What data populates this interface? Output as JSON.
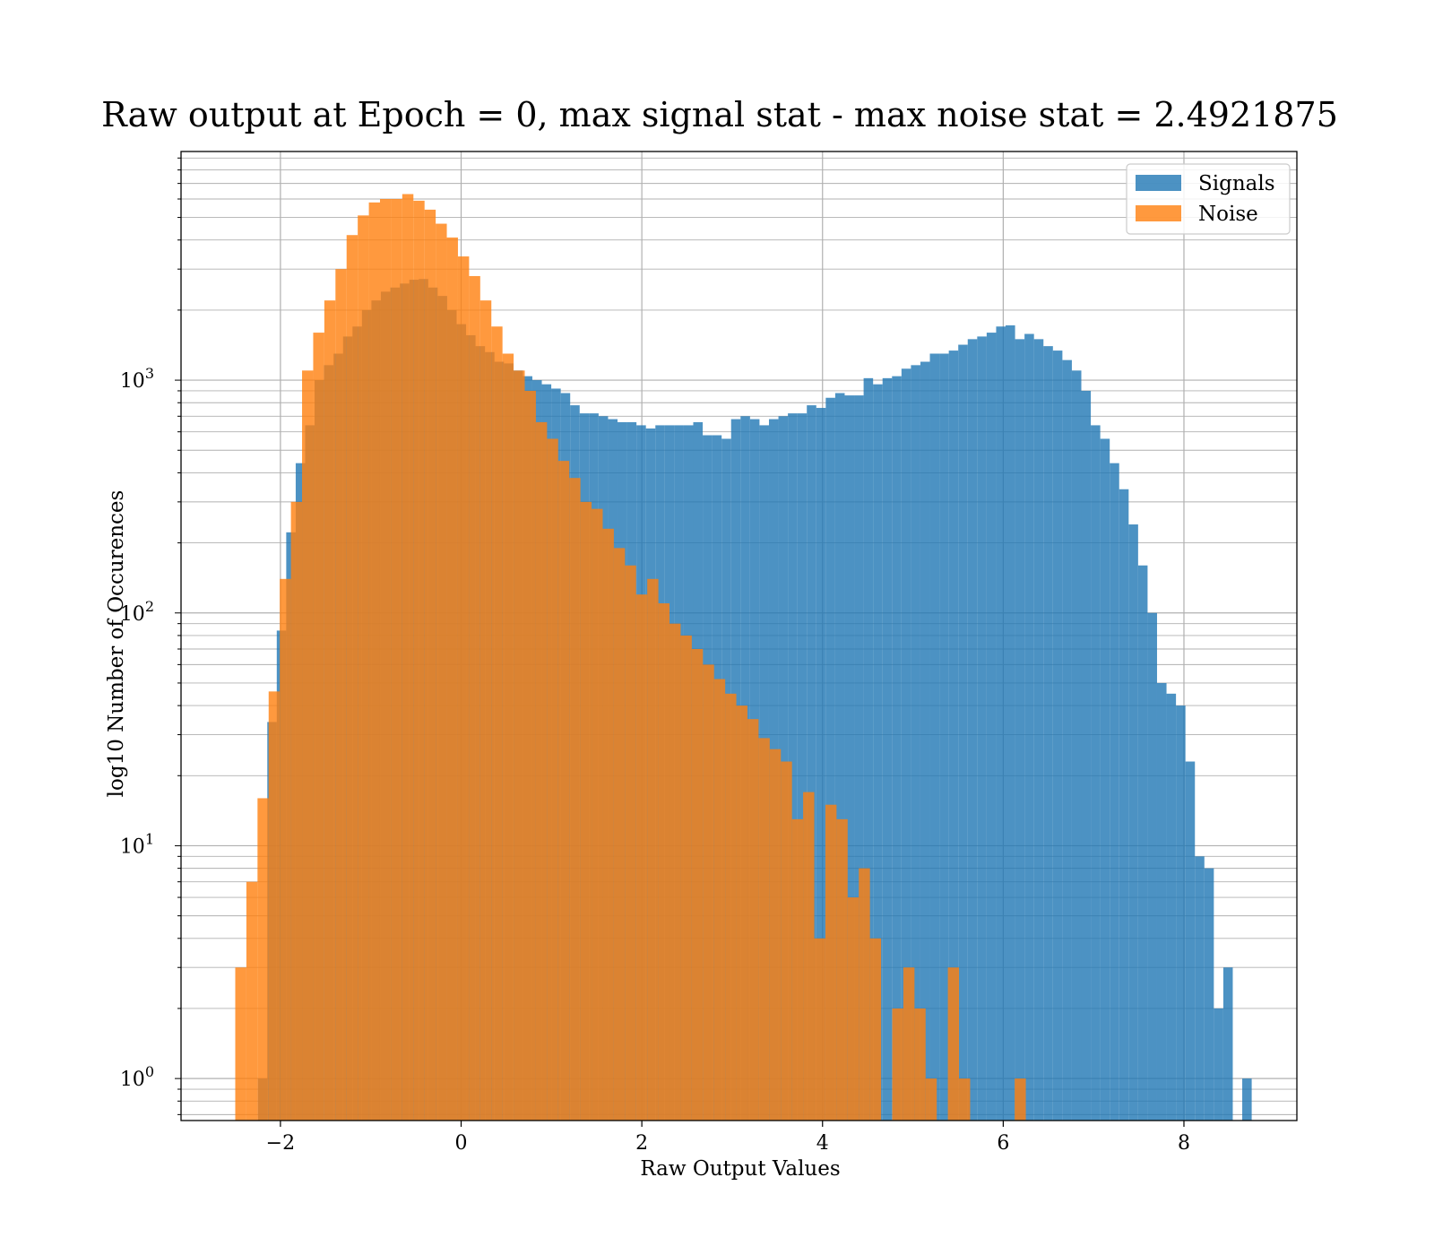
{
  "chart_data": {
    "type": "histogram",
    "title": "Raw output at Epoch = 0, max signal stat - max noise stat = 2.4921875",
    "xlabel": "Raw Output Values",
    "ylabel": "log10 Number of Occurences",
    "xlim": [
      -3.1,
      9.25
    ],
    "ylim": [
      0.66,
      9600
    ],
    "y_scale": "log",
    "x_ticks": [
      -2,
      0,
      2,
      4,
      6,
      8
    ],
    "x_tick_labels": [
      "−2",
      "0",
      "2",
      "4",
      "6",
      "8"
    ],
    "y_ticks": [
      {
        "value": 1,
        "base": "10",
        "exp": "0"
      },
      {
        "value": 10,
        "base": "10",
        "exp": "1"
      },
      {
        "value": 100,
        "base": "10",
        "exp": "2"
      },
      {
        "value": 1000,
        "base": "10",
        "exp": "3"
      }
    ],
    "grid": true,
    "legend_position": "top-right",
    "series": [
      {
        "name": "Signals",
        "color": "#1f77b4",
        "alpha": 0.8,
        "bin_edges": [
          -2.25,
          8.75
        ],
        "counts": [
          1,
          34,
          84,
          222,
          440,
          640,
          1000,
          1160,
          1300,
          1540,
          1700,
          2000,
          2200,
          2400,
          2500,
          2600,
          2700,
          2720,
          2500,
          2300,
          2000,
          1740,
          1560,
          1400,
          1320,
          1200,
          1180,
          1100,
          1040,
          1000,
          960,
          920,
          880,
          780,
          720,
          720,
          700,
          680,
          660,
          660,
          640,
          620,
          640,
          640,
          640,
          640,
          660,
          580,
          580,
          560,
          680,
          700,
          680,
          640,
          680,
          700,
          720,
          720,
          780,
          760,
          840,
          880,
          860,
          860,
          1020,
          960,
          1020,
          1040,
          1120,
          1160,
          1200,
          1300,
          1300,
          1340,
          1420,
          1500,
          1540,
          1600,
          1700,
          1720,
          1500,
          1580,
          1500,
          1400,
          1340,
          1220,
          1100,
          900,
          640,
          560,
          440,
          340,
          240,
          160,
          100,
          50,
          45,
          40,
          23,
          9,
          8,
          2,
          3,
          0,
          1
        ]
      },
      {
        "name": "Noise",
        "color": "#ff7f0e",
        "alpha": 0.8,
        "bin_edges": [
          -2.5,
          6.25
        ],
        "counts": [
          3,
          7,
          16,
          46,
          140,
          300,
          1100,
          1600,
          2200,
          3000,
          4200,
          5100,
          5800,
          6000,
          6000,
          6300,
          5900,
          5400,
          4700,
          4100,
          3400,
          2800,
          2200,
          1700,
          1300,
          1100,
          900,
          660,
          560,
          450,
          380,
          300,
          280,
          230,
          190,
          160,
          120,
          140,
          110,
          90,
          80,
          70,
          60,
          52,
          45,
          40,
          35,
          29,
          26,
          23,
          13,
          17,
          4,
          15,
          13,
          6,
          8,
          4,
          0,
          2,
          3,
          2,
          1,
          0,
          3,
          1,
          0,
          0,
          0,
          0,
          1
        ]
      }
    ]
  }
}
